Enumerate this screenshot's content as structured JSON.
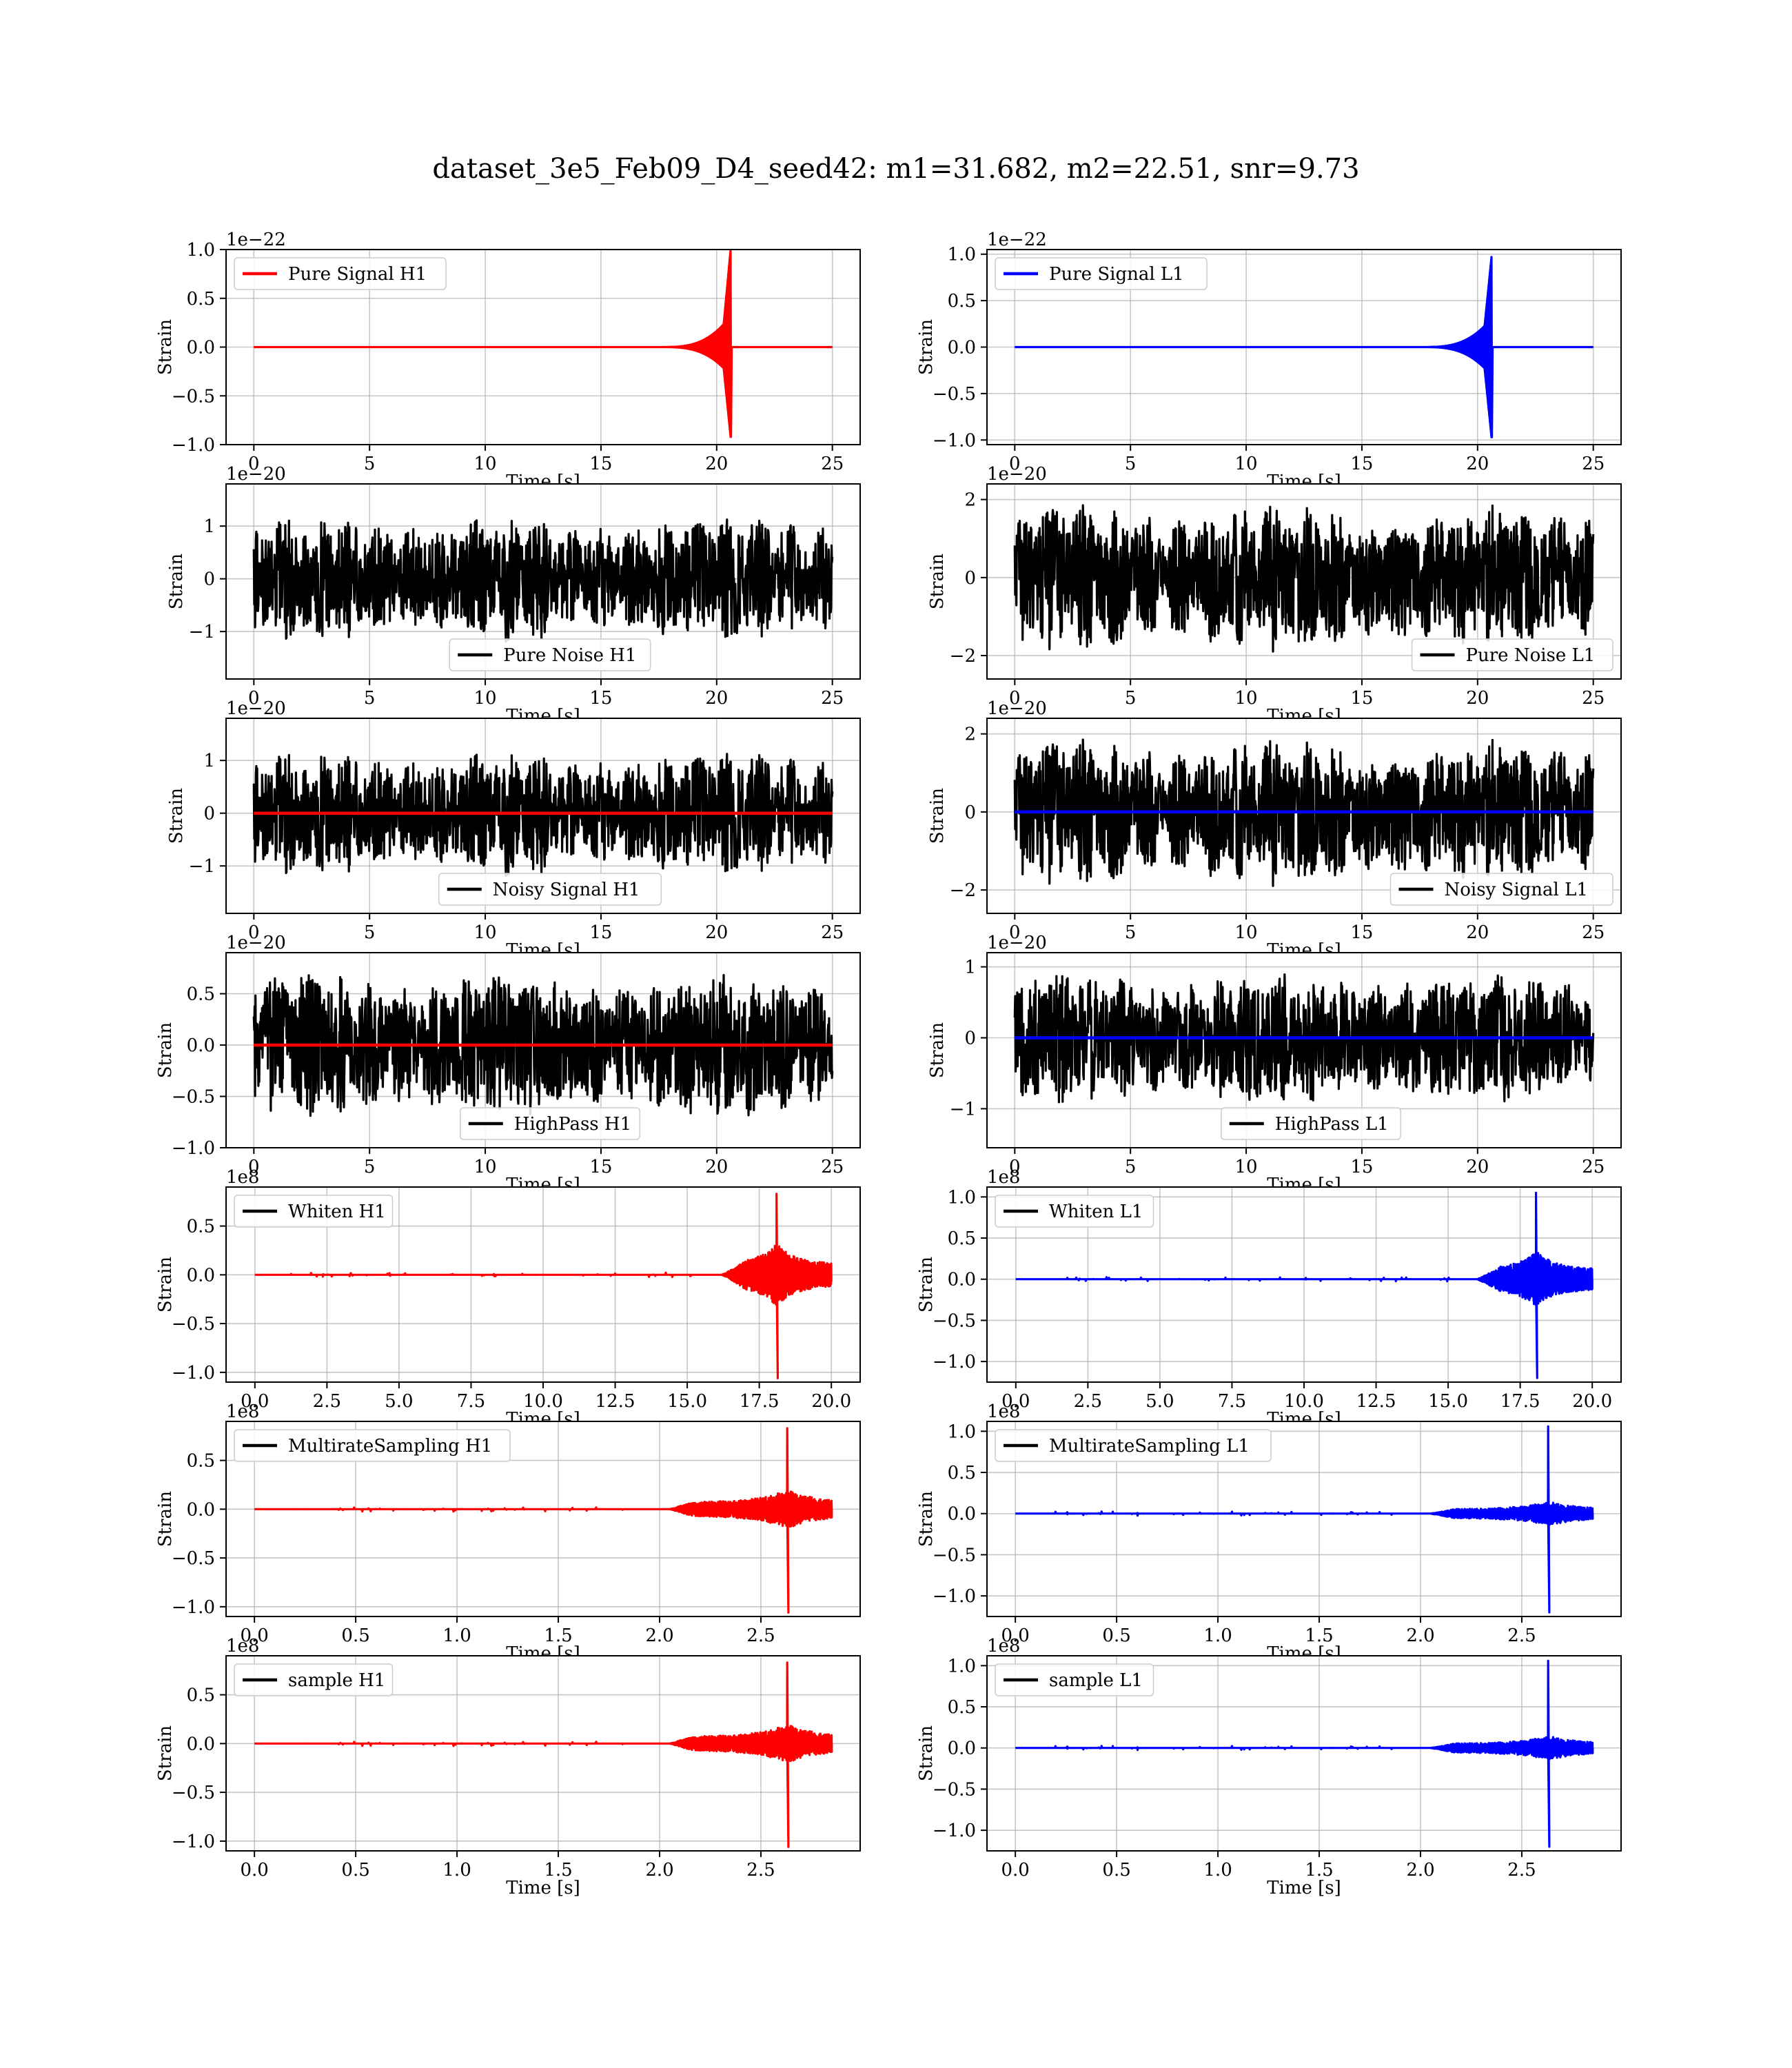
{
  "figure": {
    "title": "dataset_3e5_Feb09_D4_seed42: m1=31.682, m2=22.51, snr=9.73"
  },
  "chart_data": [
    {
      "type": "line",
      "detector": "H1",
      "panel": "pure-signal",
      "title": "",
      "xlabel": "Time [s]",
      "ylabel": "Strain",
      "offset_label": "1e−22",
      "xlim": [
        -1.2,
        26.2
      ],
      "ylim": [
        -1.0,
        1.0
      ],
      "xticks": [
        0,
        5,
        10,
        15,
        20,
        25
      ],
      "xtick_labels": [
        "0",
        "5",
        "10",
        "15",
        "20",
        "25"
      ],
      "yticks": [
        -1.0,
        -0.5,
        0.0,
        0.5,
        1.0
      ],
      "ytick_labels": [
        "−1.0",
        "−0.5",
        "0.0",
        "0.5",
        "1.0"
      ],
      "legend": {
        "position": "upper-left"
      },
      "grid": true,
      "series": [
        {
          "name": "Pure Signal H1",
          "color": "#ff0000",
          "kind": "chirp",
          "range": [
            0,
            25
          ],
          "peak_x": 20.6,
          "peak": 1.0,
          "neg_peak": -0.92,
          "tail_x": 25
        }
      ]
    },
    {
      "type": "line",
      "detector": "L1",
      "panel": "pure-signal",
      "title": "",
      "xlabel": "Time [s]",
      "ylabel": "Strain",
      "offset_label": "1e−22",
      "xlim": [
        -1.2,
        26.2
      ],
      "ylim": [
        -1.05,
        1.05
      ],
      "xticks": [
        0,
        5,
        10,
        15,
        20,
        25
      ],
      "xtick_labels": [
        "0",
        "5",
        "10",
        "15",
        "20",
        "25"
      ],
      "yticks": [
        -1.0,
        -0.5,
        0.0,
        0.5,
        1.0
      ],
      "ytick_labels": [
        "−1.0",
        "−0.5",
        "0.0",
        "0.5",
        "1.0"
      ],
      "legend": {
        "position": "upper-left"
      },
      "grid": true,
      "series": [
        {
          "name": "Pure Signal L1",
          "color": "#0000ff",
          "kind": "chirp",
          "range": [
            0,
            25
          ],
          "peak_x": 20.6,
          "peak": 0.97,
          "neg_peak": -0.97,
          "tail_x": 25
        }
      ]
    },
    {
      "type": "line",
      "detector": "H1",
      "panel": "pure-noise",
      "title": "",
      "xlabel": "Time [s]",
      "ylabel": "Strain",
      "offset_label": "1e−20",
      "xlim": [
        -1.2,
        26.2
      ],
      "ylim": [
        -1.9,
        1.8
      ],
      "xticks": [
        0,
        5,
        10,
        15,
        20,
        25
      ],
      "xtick_labels": [
        "0",
        "5",
        "10",
        "15",
        "20",
        "25"
      ],
      "yticks": [
        -1,
        0,
        1
      ],
      "ytick_labels": [
        "−1",
        "0",
        "1"
      ],
      "legend": {
        "position": "lower-center"
      },
      "grid": true,
      "series": [
        {
          "name": "Pure Noise H1",
          "color": "#000000",
          "kind": "noise",
          "range": [
            0,
            25
          ],
          "amp": 1.2,
          "seed": 11
        }
      ]
    },
    {
      "type": "line",
      "detector": "L1",
      "panel": "pure-noise",
      "title": "",
      "xlabel": "Time [s]",
      "ylabel": "Strain",
      "offset_label": "1e−20",
      "xlim": [
        -1.2,
        26.2
      ],
      "ylim": [
        -2.6,
        2.4
      ],
      "xticks": [
        0,
        5,
        10,
        15,
        20,
        25
      ],
      "xtick_labels": [
        "0",
        "5",
        "10",
        "15",
        "20",
        "25"
      ],
      "yticks": [
        -2,
        0,
        2
      ],
      "ytick_labels": [
        "−2",
        "0",
        "2"
      ],
      "legend": {
        "position": "lower-right"
      },
      "grid": true,
      "series": [
        {
          "name": "Pure Noise L1",
          "color": "#000000",
          "kind": "noise",
          "range": [
            0,
            25
          ],
          "amp": 1.9,
          "seed": 23
        }
      ]
    },
    {
      "type": "line",
      "detector": "H1",
      "panel": "noisy-signal",
      "title": "",
      "xlabel": "Time [s]",
      "ylabel": "Strain",
      "offset_label": "1e−20",
      "xlim": [
        -1.2,
        26.2
      ],
      "ylim": [
        -1.9,
        1.8
      ],
      "xticks": [
        0,
        5,
        10,
        15,
        20,
        25
      ],
      "xtick_labels": [
        "0",
        "5",
        "10",
        "15",
        "20",
        "25"
      ],
      "yticks": [
        -1,
        0,
        1
      ],
      "ytick_labels": [
        "−1",
        "0",
        "1"
      ],
      "legend": {
        "position": "lower-center"
      },
      "grid": true,
      "series": [
        {
          "name": "Noisy Signal H1",
          "color": "#000000",
          "kind": "noise",
          "range": [
            0,
            25
          ],
          "amp": 1.2,
          "seed": 11
        },
        {
          "name": "",
          "color": "#ff0000",
          "kind": "flat",
          "range": [
            0,
            25
          ],
          "level": 0
        }
      ]
    },
    {
      "type": "line",
      "detector": "L1",
      "panel": "noisy-signal",
      "title": "",
      "xlabel": "Time [s]",
      "ylabel": "Strain",
      "offset_label": "1e−20",
      "xlim": [
        -1.2,
        26.2
      ],
      "ylim": [
        -2.6,
        2.4
      ],
      "xticks": [
        0,
        5,
        10,
        15,
        20,
        25
      ],
      "xtick_labels": [
        "0",
        "5",
        "10",
        "15",
        "20",
        "25"
      ],
      "yticks": [
        -2,
        0,
        2
      ],
      "ytick_labels": [
        "−2",
        "0",
        "2"
      ],
      "legend": {
        "position": "lower-right"
      },
      "grid": true,
      "series": [
        {
          "name": "Noisy Signal L1",
          "color": "#000000",
          "kind": "noise",
          "range": [
            0,
            25
          ],
          "amp": 1.9,
          "seed": 23
        },
        {
          "name": "",
          "color": "#0000ff",
          "kind": "flat",
          "range": [
            0,
            25
          ],
          "level": 0
        }
      ]
    },
    {
      "type": "line",
      "detector": "H1",
      "panel": "highpass",
      "title": "",
      "xlabel": "Time [s]",
      "ylabel": "Strain",
      "offset_label": "1e−20",
      "xlim": [
        -1.2,
        26.2
      ],
      "ylim": [
        -1.0,
        0.9
      ],
      "xticks": [
        0,
        5,
        10,
        15,
        20,
        25
      ],
      "xtick_labels": [
        "0",
        "5",
        "10",
        "15",
        "20",
        "25"
      ],
      "yticks": [
        -1.0,
        -0.5,
        0.0,
        0.5
      ],
      "ytick_labels": [
        "−1.0",
        "−0.5",
        "0.0",
        "0.5"
      ],
      "legend": {
        "position": "lower-center"
      },
      "grid": true,
      "series": [
        {
          "name": "HighPass H1",
          "color": "#000000",
          "kind": "noise",
          "range": [
            0,
            25
          ],
          "amp": 0.72,
          "seed": 37
        },
        {
          "name": "",
          "color": "#ff0000",
          "kind": "flat",
          "range": [
            0,
            25
          ],
          "level": 0
        }
      ]
    },
    {
      "type": "line",
      "detector": "L1",
      "panel": "highpass",
      "title": "",
      "xlabel": "Time [s]",
      "ylabel": "Strain",
      "offset_label": "1e−20",
      "xlim": [
        -1.2,
        26.2
      ],
      "ylim": [
        -1.55,
        1.2
      ],
      "xticks": [
        0,
        5,
        10,
        15,
        20,
        25
      ],
      "xtick_labels": [
        "0",
        "5",
        "10",
        "15",
        "20",
        "25"
      ],
      "yticks": [
        -1,
        0,
        1
      ],
      "ytick_labels": [
        "−1",
        "0",
        "1"
      ],
      "legend": {
        "position": "lower-center"
      },
      "grid": true,
      "series": [
        {
          "name": "HighPass L1",
          "color": "#000000",
          "kind": "noise",
          "range": [
            0,
            25
          ],
          "amp": 0.95,
          "seed": 41
        },
        {
          "name": "",
          "color": "#0000ff",
          "kind": "flat",
          "range": [
            0,
            25
          ],
          "level": 0
        }
      ]
    },
    {
      "type": "line",
      "detector": "H1",
      "panel": "whiten",
      "title": "",
      "xlabel": "Time [s]",
      "ylabel": "Strain",
      "offset_label": "1e8",
      "xlim": [
        -1.0,
        21.0
      ],
      "ylim": [
        -1.1,
        0.9
      ],
      "xticks": [
        0,
        2.5,
        5,
        7.5,
        10,
        12.5,
        15,
        17.5,
        20
      ],
      "xtick_labels": [
        "0.0",
        "2.5",
        "5.0",
        "7.5",
        "10.0",
        "12.5",
        "15.0",
        "17.5",
        "20.0"
      ],
      "yticks": [
        -1.0,
        -0.5,
        0.0,
        0.5
      ],
      "ytick_labels": [
        "−1.0",
        "−0.5",
        "0.0",
        "0.5"
      ],
      "legend": {
        "position": "upper-left"
      },
      "grid": true,
      "series": [
        {
          "name": "Whiten H1",
          "color": "#000000",
          "kind": "legend-only"
        },
        {
          "name": "",
          "color": "#ff0000",
          "kind": "burst",
          "range": [
            0,
            20
          ],
          "start": 16.2,
          "peak_x": 18.1,
          "peak": 0.83,
          "neg_peak": -1.06,
          "env": 0.32,
          "seed": 5
        }
      ]
    },
    {
      "type": "line",
      "detector": "L1",
      "panel": "whiten",
      "title": "",
      "xlabel": "Time [s]",
      "ylabel": "Strain",
      "offset_label": "1e8",
      "xlim": [
        -1.0,
        21.0
      ],
      "ylim": [
        -1.25,
        1.12
      ],
      "xticks": [
        0,
        2.5,
        5,
        7.5,
        10,
        12.5,
        15,
        17.5,
        20
      ],
      "xtick_labels": [
        "0.0",
        "2.5",
        "5.0",
        "7.5",
        "10.0",
        "12.5",
        "15.0",
        "17.5",
        "20.0"
      ],
      "yticks": [
        -1.0,
        -0.5,
        0.0,
        0.5,
        1.0
      ],
      "ytick_labels": [
        "−1.0",
        "−0.5",
        "0.0",
        "0.5",
        "1.0"
      ],
      "legend": {
        "position": "upper-left"
      },
      "grid": true,
      "series": [
        {
          "name": "Whiten L1",
          "color": "#000000",
          "kind": "legend-only"
        },
        {
          "name": "",
          "color": "#0000ff",
          "kind": "burst",
          "range": [
            0,
            20
          ],
          "start": 16.0,
          "peak_x": 18.05,
          "peak": 1.05,
          "neg_peak": -1.2,
          "env": 0.34,
          "seed": 9
        }
      ]
    },
    {
      "type": "line",
      "detector": "H1",
      "panel": "multirate-sampling",
      "title": "",
      "xlabel": "Time [s]",
      "ylabel": "Strain",
      "offset_label": "1e8",
      "xlim": [
        -0.14,
        2.99
      ],
      "ylim": [
        -1.1,
        0.9
      ],
      "xticks": [
        0,
        0.5,
        1.0,
        1.5,
        2.0,
        2.5
      ],
      "xtick_labels": [
        "0.0",
        "0.5",
        "1.0",
        "1.5",
        "2.0",
        "2.5"
      ],
      "yticks": [
        -1.0,
        -0.5,
        0.0,
        0.5
      ],
      "ytick_labels": [
        "−1.0",
        "−0.5",
        "0.0",
        "0.5"
      ],
      "legend": {
        "position": "upper-left"
      },
      "grid": true,
      "series": [
        {
          "name": "MultirateSampling H1",
          "color": "#000000",
          "kind": "legend-only"
        },
        {
          "name": "",
          "color": "#ff0000",
          "kind": "burst",
          "range": [
            0,
            2.85
          ],
          "start": 2.05,
          "peak_x": 2.63,
          "peak": 0.83,
          "neg_peak": -1.06,
          "env": 0.2,
          "seed": 14
        }
      ]
    },
    {
      "type": "line",
      "detector": "L1",
      "panel": "multirate-sampling",
      "title": "",
      "xlabel": "Time [s]",
      "ylabel": "Strain",
      "offset_label": "1e8",
      "xlim": [
        -0.14,
        2.99
      ],
      "ylim": [
        -1.25,
        1.12
      ],
      "xticks": [
        0,
        0.5,
        1.0,
        1.5,
        2.0,
        2.5
      ],
      "xtick_labels": [
        "0.0",
        "0.5",
        "1.0",
        "1.5",
        "2.0",
        "2.5"
      ],
      "yticks": [
        -1.0,
        -0.5,
        0.0,
        0.5,
        1.0
      ],
      "ytick_labels": [
        "−1.0",
        "−0.5",
        "0.0",
        "0.5",
        "1.0"
      ],
      "legend": {
        "position": "upper-left"
      },
      "grid": true,
      "series": [
        {
          "name": "MultirateSampling L1",
          "color": "#000000",
          "kind": "legend-only"
        },
        {
          "name": "",
          "color": "#0000ff",
          "kind": "burst",
          "range": [
            0,
            2.85
          ],
          "start": 2.05,
          "peak_x": 2.63,
          "peak": 1.06,
          "neg_peak": -1.2,
          "env": 0.15,
          "seed": 19
        }
      ]
    },
    {
      "type": "line",
      "detector": "H1",
      "panel": "sample",
      "title": "",
      "xlabel": "Time [s]",
      "ylabel": "Strain",
      "offset_label": "1e8",
      "xlim": [
        -0.14,
        2.99
      ],
      "ylim": [
        -1.1,
        0.9
      ],
      "xticks": [
        0,
        0.5,
        1.0,
        1.5,
        2.0,
        2.5
      ],
      "xtick_labels": [
        "0.0",
        "0.5",
        "1.0",
        "1.5",
        "2.0",
        "2.5"
      ],
      "yticks": [
        -1.0,
        -0.5,
        0.0,
        0.5
      ],
      "ytick_labels": [
        "−1.0",
        "−0.5",
        "0.0",
        "0.5"
      ],
      "legend": {
        "position": "upper-left"
      },
      "grid": true,
      "series": [
        {
          "name": "sample H1",
          "color": "#000000",
          "kind": "legend-only"
        },
        {
          "name": "",
          "color": "#ff0000",
          "kind": "burst",
          "range": [
            0,
            2.85
          ],
          "start": 2.05,
          "peak_x": 2.63,
          "peak": 0.83,
          "neg_peak": -1.06,
          "env": 0.2,
          "seed": 14
        }
      ]
    },
    {
      "type": "line",
      "detector": "L1",
      "panel": "sample",
      "title": "",
      "xlabel": "Time [s]",
      "ylabel": "Strain",
      "offset_label": "1e8",
      "xlim": [
        -0.14,
        2.99
      ],
      "ylim": [
        -1.25,
        1.12
      ],
      "xticks": [
        0,
        0.5,
        1.0,
        1.5,
        2.0,
        2.5
      ],
      "xtick_labels": [
        "0.0",
        "0.5",
        "1.0",
        "1.5",
        "2.0",
        "2.5"
      ],
      "yticks": [
        -1.0,
        -0.5,
        0.0,
        0.5,
        1.0
      ],
      "ytick_labels": [
        "−1.0",
        "−0.5",
        "0.0",
        "0.5",
        "1.0"
      ],
      "legend": {
        "position": "upper-left"
      },
      "grid": true,
      "series": [
        {
          "name": "sample L1",
          "color": "#000000",
          "kind": "legend-only"
        },
        {
          "name": "",
          "color": "#0000ff",
          "kind": "burst",
          "range": [
            0,
            2.85
          ],
          "start": 2.05,
          "peak_x": 2.63,
          "peak": 1.06,
          "neg_peak": -1.2,
          "env": 0.15,
          "seed": 19
        }
      ]
    }
  ]
}
